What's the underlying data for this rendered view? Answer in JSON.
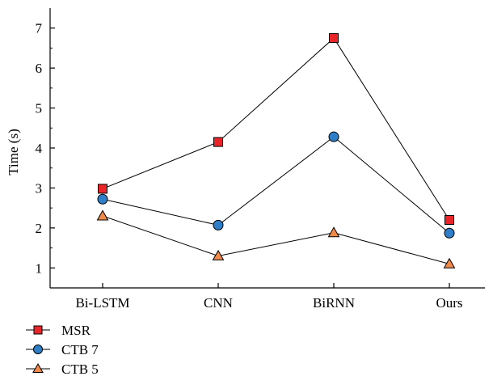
{
  "chart_data": {
    "type": "line",
    "categories": [
      "Bi-LSTM",
      "CNN",
      "BiRNN",
      "Ours"
    ],
    "ylabel": "Time (s)",
    "xlabel": "",
    "title": "",
    "ylim": [
      0.5,
      7.5
    ],
    "yticks": [
      1,
      2,
      3,
      4,
      5,
      6,
      7
    ],
    "grid": false,
    "legend_position": "bottom-left",
    "series": [
      {
        "name": "MSR",
        "marker": "square",
        "color": "#e8262a",
        "values": [
          2.98,
          4.15,
          6.75,
          2.2
        ]
      },
      {
        "name": "CTB 7",
        "marker": "circle",
        "color": "#2f7fc8",
        "values": [
          2.72,
          2.07,
          4.28,
          1.87
        ]
      },
      {
        "name": "CTB 5",
        "marker": "triangle",
        "color": "#f08a4b",
        "values": [
          2.3,
          1.3,
          1.88,
          1.1
        ]
      }
    ]
  }
}
